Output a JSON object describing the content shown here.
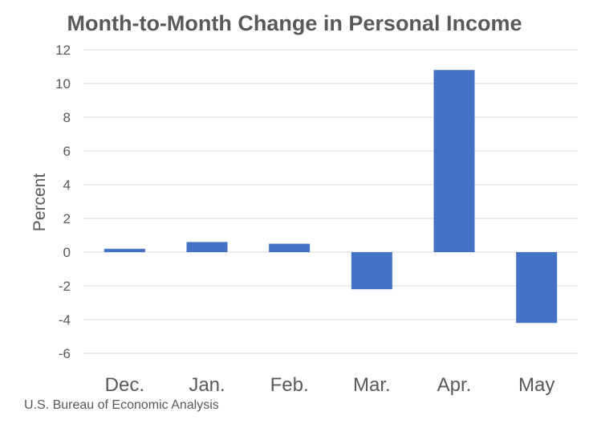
{
  "chart_data": {
    "type": "bar",
    "title": "Month-to-Month Change in Personal Income",
    "xlabel": "",
    "ylabel": "Percent",
    "categories": [
      "Dec.",
      "Jan.",
      "Feb.",
      "Mar.",
      "Apr.",
      "May"
    ],
    "values": [
      0.2,
      0.6,
      0.5,
      -2.2,
      10.8,
      -4.2
    ],
    "ylim": [
      -6,
      12
    ],
    "yticks": [
      "12",
      "10",
      "8",
      "6",
      "4",
      "2",
      "0",
      "-2",
      "-4",
      "-6"
    ],
    "ytick_values": [
      12,
      10,
      8,
      6,
      4,
      2,
      0,
      -2,
      -4,
      -6
    ],
    "bar_color": "#4472C4",
    "grid": true,
    "legend": "none"
  },
  "source": "U.S. Bureau of Economic Analysis"
}
